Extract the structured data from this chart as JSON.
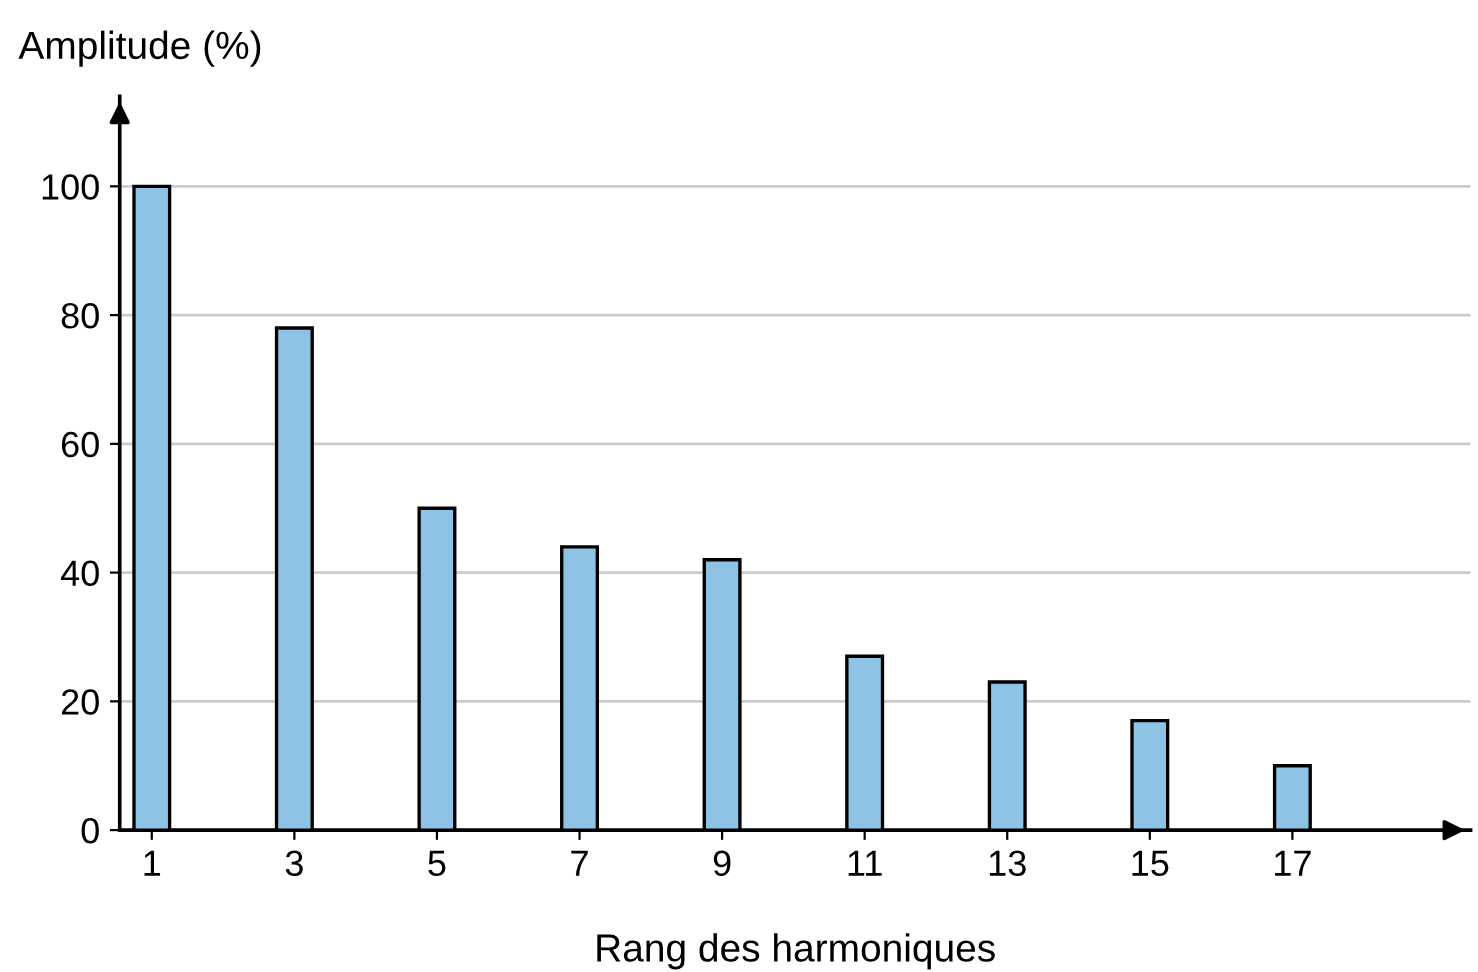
{
  "chart_data": {
    "type": "bar",
    "xlabel": "Rang des harmoniques",
    "ylabel": "Amplitude (%)",
    "x": [
      1,
      3,
      5,
      7,
      9,
      11,
      13,
      15,
      17
    ],
    "values": [
      100,
      78,
      50,
      44,
      42,
      27,
      23,
      17,
      10
    ],
    "color": "#8ec3e6",
    "xlim": [
      0.55,
      19.5
    ],
    "xticks": [
      1,
      3,
      5,
      7,
      9,
      11,
      13,
      15,
      17
    ],
    "ylim": [
      0,
      114
    ],
    "yticks": [
      0,
      20,
      40,
      60,
      80,
      100
    ],
    "grid": "y"
  }
}
